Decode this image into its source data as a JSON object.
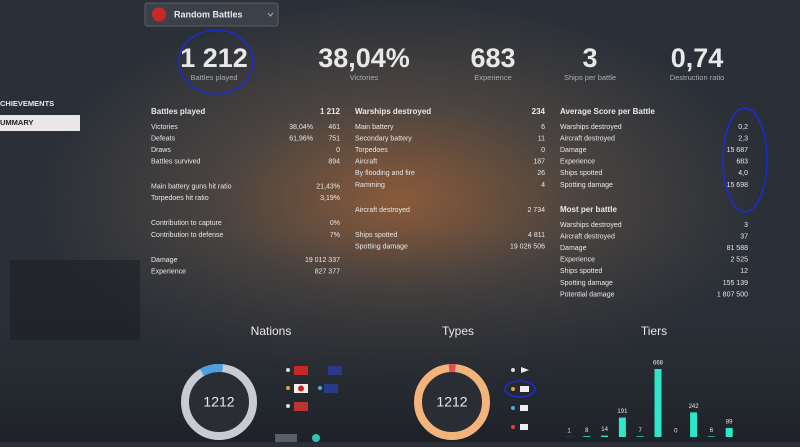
{
  "mode_selector": "Random Battles",
  "side_menu": [
    "CHIEVEMENTS",
    "UMMARY"
  ],
  "summary": [
    {
      "value": "1 212",
      "label": "Battles played"
    },
    {
      "value": "38,04%",
      "label": "Victories"
    },
    {
      "value": "683",
      "label": "Experience"
    },
    {
      "value": "3",
      "label": "Ships per battle"
    },
    {
      "value": "0,74",
      "label": "Destruction ratio"
    }
  ],
  "columns": [
    {
      "sections": [
        {
          "title": "Battles played",
          "total": "1 212",
          "groups": [
            [
              {
                "label": "Victories",
                "percent": "38,04%",
                "value": "461"
              },
              {
                "label": "Defeats",
                "percent": "61,96%",
                "value": "751"
              },
              {
                "label": "Draws",
                "value": "0"
              },
              {
                "label": "Battles survived",
                "value": "894"
              }
            ],
            [
              {
                "label": "Main battery guns hit ratio",
                "value": "21,43%"
              },
              {
                "label": "Torpedoes hit ratio",
                "value": "3,19%"
              }
            ],
            [
              {
                "label": "Contribution to capture",
                "value": "0%"
              },
              {
                "label": "Contribution to defense",
                "value": "7%"
              }
            ],
            [
              {
                "label": "Damage",
                "value": "19 012 337"
              },
              {
                "label": "Experience",
                "value": "827 377"
              }
            ]
          ]
        }
      ]
    },
    {
      "sections": [
        {
          "title": "Warships destroyed",
          "total": "234",
          "groups": [
            [
              {
                "label": "Main battery",
                "value": "6"
              },
              {
                "label": "Secondary battery",
                "value": "11"
              },
              {
                "label": "Torpedoes",
                "value": "0"
              },
              {
                "label": "Aircraft",
                "value": "187"
              },
              {
                "label": "By flooding and fire",
                "value": "26"
              },
              {
                "label": "Ramming",
                "value": "4"
              }
            ],
            [
              {
                "label": "Aircraft destroyed",
                "value": "2 734"
              }
            ],
            [
              {
                "label": "Ships spotted",
                "value": "4 811"
              },
              {
                "label": "Spotting damage",
                "value": "19 026 506"
              }
            ]
          ]
        }
      ]
    },
    {
      "sections": [
        {
          "title": "Average Score per Battle",
          "groups": [
            [
              {
                "label": "Warships destroyed",
                "value": "0,2"
              },
              {
                "label": "Aircraft destroyed",
                "value": "2,3"
              },
              {
                "label": "Damage",
                "value": "15 687"
              },
              {
                "label": "Experience",
                "value": "683"
              },
              {
                "label": "Ships spotted",
                "value": "4,0"
              },
              {
                "label": "Spotting damage",
                "value": "15 698"
              }
            ]
          ]
        },
        {
          "title": "Most per battle",
          "groups": [
            [
              {
                "label": "Warships destroyed",
                "value": "3"
              },
              {
                "label": "Aircraft destroyed",
                "value": "37"
              },
              {
                "label": "Damage",
                "value": "81 588"
              },
              {
                "label": "Experience",
                "value": "2 525"
              },
              {
                "label": "Ships spotted",
                "value": "12"
              },
              {
                "label": "Spotting damage",
                "value": "155 139"
              },
              {
                "label": "Potential damage",
                "value": "1 807 500"
              }
            ]
          ]
        }
      ]
    }
  ],
  "charts": {
    "nations": {
      "title": "Nations",
      "center": "1212"
    },
    "types": {
      "title": "Types",
      "center": "1212"
    },
    "tiers": {
      "title": "Tiers",
      "values": [
        1,
        8,
        14,
        191,
        7,
        668,
        0,
        242,
        6,
        89
      ]
    }
  }
}
